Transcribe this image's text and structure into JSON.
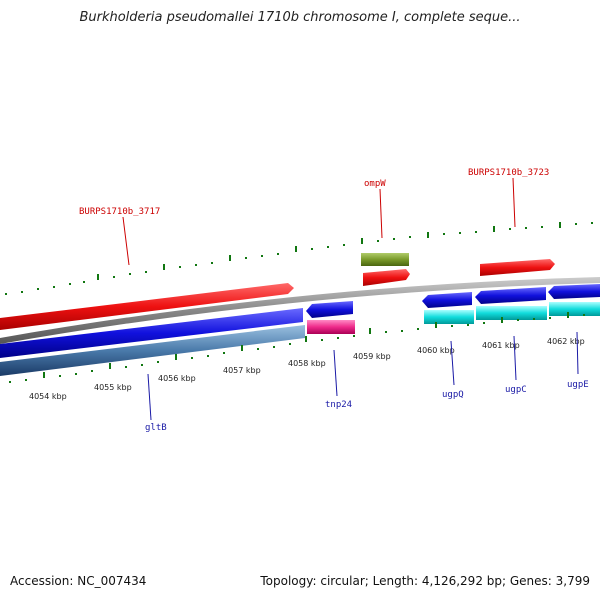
{
  "title": "Burkholderia pseudomallei 1710b chromosome I, complete seque...",
  "footer": {
    "accession": "Accession: NC_007434",
    "summary": "Topology: circular; Length: 4,126,292 bp; Genes: 3,799"
  },
  "scale_ticks": [
    "4054 kbp",
    "4055 kbp",
    "4056 kbp",
    "4057 kbp",
    "4058 kbp",
    "4059 kbp",
    "4060 kbp",
    "4061 kbp",
    "4062 kbp"
  ],
  "gene_labels": {
    "forward": [
      "BURPS1710b_3717",
      "ompW",
      "BURPS1710b_3723"
    ],
    "reverse": [
      "gltB",
      "tnp24",
      "ugpQ",
      "ugpC",
      "ugpE"
    ]
  },
  "colors": {
    "forward_cds": "#ee1111",
    "reverse_cds": "#1111dd",
    "rna": "#7a9a2a",
    "pink": "#ee2a8a",
    "cyan": "#11dddd",
    "steel": "#4a7aaa",
    "backbone": "#888888",
    "ticks": "#117711",
    "forward_label": "#cc0000",
    "reverse_label": "#1a1aa6"
  }
}
